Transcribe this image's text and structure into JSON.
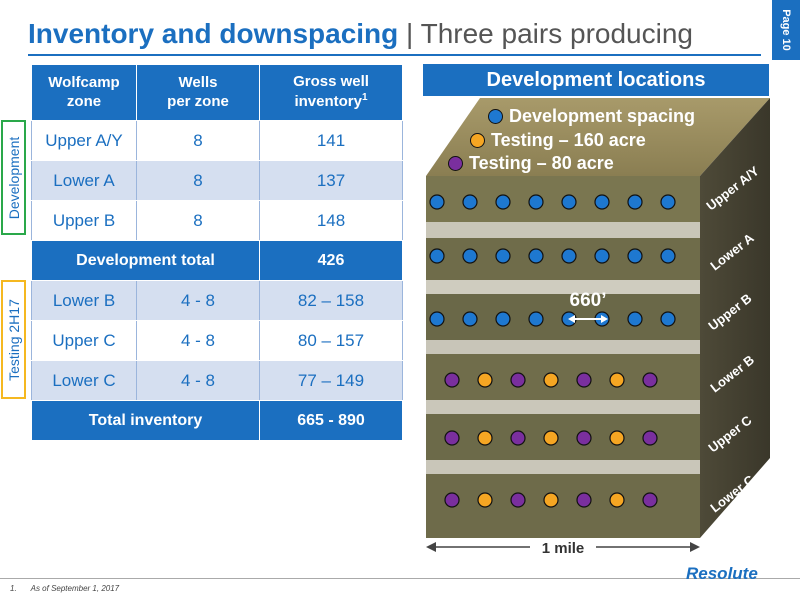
{
  "header": {
    "title_bold": "Inventory and downspacing",
    "separator": "|",
    "title_rest": "Three pairs producing",
    "page_label": "Page 10"
  },
  "table": {
    "headers": [
      {
        "line1": "Wolfcamp",
        "line2": "zone",
        "sup": ""
      },
      {
        "line1": "Wells",
        "line2": "per zone",
        "sup": ""
      },
      {
        "line1": "Gross well",
        "line2": "inventory",
        "sup": "1"
      }
    ],
    "development_rows": [
      {
        "zone": "Upper A/Y",
        "wells": "8",
        "inventory": "141"
      },
      {
        "zone": "Lower A",
        "wells": "8",
        "inventory": "137"
      },
      {
        "zone": "Upper B",
        "wells": "8",
        "inventory": "148"
      }
    ],
    "development_total": {
      "label": "Development total",
      "value": "426"
    },
    "testing_rows": [
      {
        "zone": "Lower B",
        "wells": "4 - 8",
        "inventory": "82 – 158"
      },
      {
        "zone": "Upper C",
        "wells": "4 - 8",
        "inventory": "80 – 157"
      },
      {
        "zone": "Lower C",
        "wells": "4 - 8",
        "inventory": "77 – 149"
      }
    ],
    "total_inventory": {
      "label": "Total inventory",
      "value": "665 - 890"
    }
  },
  "side_labels": {
    "development": "Development",
    "testing": "Testing 2H17"
  },
  "diagram": {
    "title": "Development locations",
    "legend": [
      {
        "label": "Development spacing",
        "color": "#1e78d0"
      },
      {
        "label": "Testing – 160 acre",
        "color": "#f5a623"
      },
      {
        "label": "Testing – 80 acre",
        "color": "#7a2f9e"
      }
    ],
    "zone_labels": [
      "Upper A/Y",
      "Lower A",
      "Upper B",
      "Lower B",
      "Upper C",
      "Lower C"
    ],
    "spacing_label": "660’",
    "scale_label": "1 mile"
  },
  "footer": {
    "footnote_num": "1.",
    "footnote_text": "As of September 1, 2017",
    "logo": "Resolute"
  },
  "colors": {
    "accent": "#1b6fc0",
    "development": "#2aa84a",
    "testing": "#f5b820",
    "dev_dot": "#1e78d0",
    "t160_dot": "#f5a623",
    "t80_dot": "#7a2f9e"
  }
}
